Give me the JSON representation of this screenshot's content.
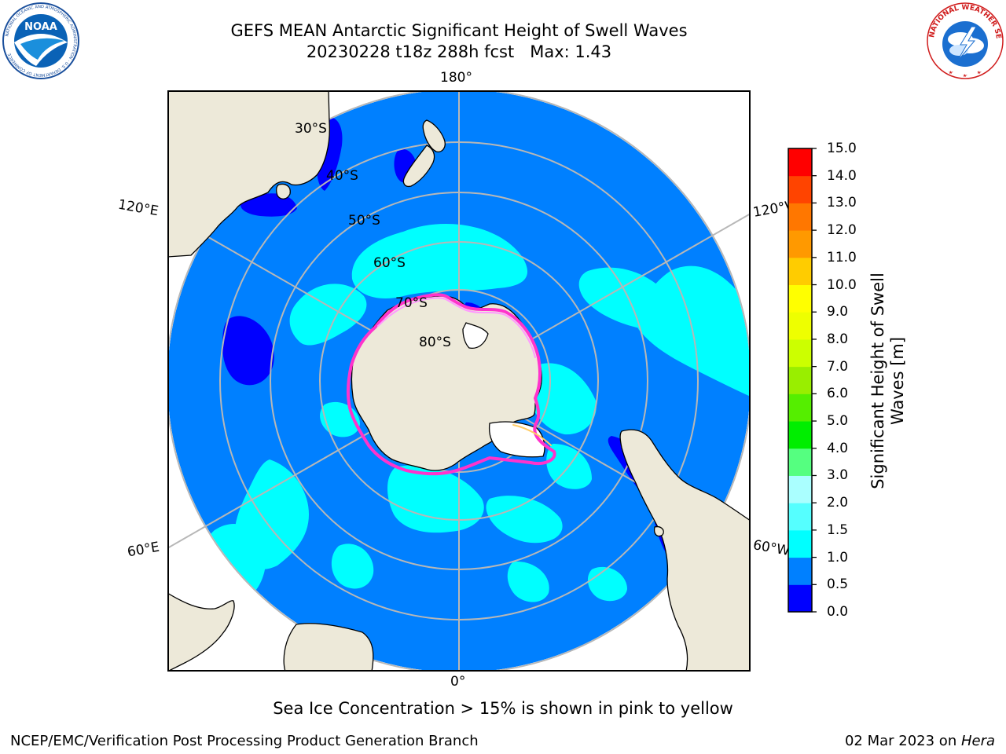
{
  "header": {
    "title_line1": "GEFS MEAN Antarctic Significant Height of Swell Waves",
    "title_line2": "20230228 t18z 288h fcst   Max: 1.43",
    "left_logo": "noaa-logo",
    "left_logo_text": "NOAA",
    "left_logo_ring_text": "NATIONAL OCEANIC AND ATMOSPHERIC ADMINISTRATION · U.S. DEPARTMENT OF COMMERCE",
    "right_logo": "nws-logo",
    "right_logo_ring_text": "NATIONAL WEATHER SERVICE"
  },
  "map": {
    "projection": "south-polar-stereographic",
    "longitude_labels": {
      "top": "180°",
      "bottom": "0°",
      "upper_left": "120°E",
      "lower_left": "60°E",
      "upper_right": "120°W",
      "lower_right": "60°W"
    },
    "latitude_labels": [
      "30°S",
      "40°S",
      "50°S",
      "60°S",
      "70°S",
      "80°S"
    ],
    "colors": {
      "land": "#ede9d9",
      "coastline": "#000000",
      "graticule": "#b7b7b7",
      "no_data": "#ffffff"
    },
    "sea_ice_colors": [
      "#ff33cc",
      "#ff99ff",
      "#ffcc66"
    ]
  },
  "colorbar": {
    "title_line1": "Significant Height of Swell",
    "title_line2": "Waves [m]",
    "ticks": [
      "15.0",
      "14.0",
      "13.0",
      "12.0",
      "11.0",
      "10.0",
      "9.0",
      "8.0",
      "7.0",
      "6.0",
      "5.0",
      "4.0",
      "3.0",
      "2.0",
      "1.5",
      "1.0",
      "0.5",
      "0.0"
    ],
    "colors_bottom_to_top": [
      "#0000ff",
      "#0080ff",
      "#00ffff",
      "#55ffff",
      "#aaffff",
      "#55ff80",
      "#00ee00",
      "#55ee00",
      "#99ee00",
      "#ccff00",
      "#eeff00",
      "#ffff00",
      "#ffcc00",
      "#ff9900",
      "#ff7700",
      "#ff4400",
      "#ff0000"
    ]
  },
  "note": "Sea Ice Concentration > 15% is shown in pink to yellow",
  "footer": {
    "left": "NCEP/EMC/Verification Post Processing Product Generation Branch",
    "right_date": "02 Mar 2023 on ",
    "right_host": "Hera"
  }
}
